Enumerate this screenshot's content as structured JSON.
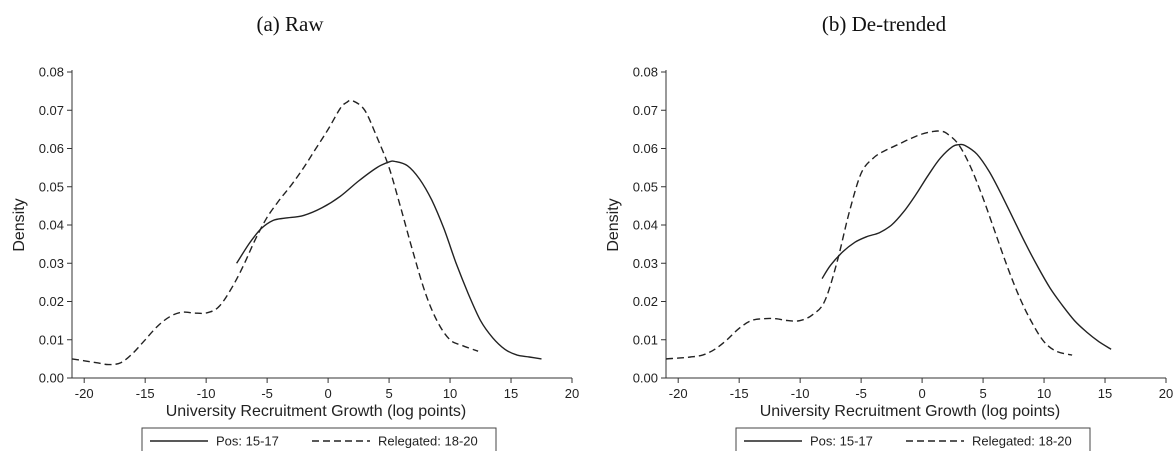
{
  "chart_data": [
    {
      "type": "line",
      "title": "(a) Raw",
      "xlabel": "University Recruitment Growth (log points)",
      "ylabel": "Density",
      "xlim": [
        -21,
        20
      ],
      "ylim": [
        0,
        0.08
      ],
      "xticks": [
        -20,
        -15,
        -10,
        -5,
        0,
        5,
        10,
        15,
        20
      ],
      "yticks": [
        "0.00",
        "0.01",
        "0.02",
        "0.03",
        "0.04",
        "0.05",
        "0.06",
        "0.07",
        "0.08"
      ],
      "grid": false,
      "legend_position": "bottom",
      "series": [
        {
          "name": "Pos: 15-17",
          "style": "solid",
          "x": [
            -7.5,
            -6.5,
            -5.5,
            -4.5,
            -3.5,
            -2,
            -0.5,
            1,
            2.5,
            4,
            5,
            5.5,
            6.5,
            7.5,
            8.5,
            9.5,
            10.5,
            11.5,
            12.5,
            13.5,
            14.5,
            15.5,
            16.5,
            17.5
          ],
          "y": [
            0.03,
            0.035,
            0.039,
            0.0412,
            0.0418,
            0.0425,
            0.0445,
            0.0475,
            0.0515,
            0.055,
            0.0565,
            0.0566,
            0.0555,
            0.052,
            0.0465,
            0.039,
            0.03,
            0.022,
            0.015,
            0.0105,
            0.0075,
            0.006,
            0.0055,
            0.005
          ]
        },
        {
          "name": "Relegated: 18-20",
          "style": "dashed",
          "x": [
            -21,
            -20,
            -19,
            -18,
            -17,
            -16,
            -15,
            -14,
            -13,
            -12,
            -11,
            -10,
            -9,
            -8,
            -7,
            -6,
            -5,
            -4,
            -3,
            -2,
            -1,
            0,
            1,
            1.5,
            2,
            3,
            4,
            5,
            6,
            7,
            8,
            9,
            10,
            11,
            12.3
          ],
          "y": [
            0.005,
            0.0045,
            0.004,
            0.0035,
            0.004,
            0.0065,
            0.01,
            0.0135,
            0.016,
            0.0172,
            0.017,
            0.017,
            0.0185,
            0.023,
            0.029,
            0.036,
            0.042,
            0.0465,
            0.0505,
            0.055,
            0.06,
            0.065,
            0.0705,
            0.072,
            0.0725,
            0.07,
            0.063,
            0.055,
            0.044,
            0.0325,
            0.022,
            0.0145,
            0.01,
            0.0085,
            0.007
          ]
        }
      ]
    },
    {
      "type": "line",
      "title": "(b) De-trended",
      "xlabel": "University Recruitment Growth (log points)",
      "ylabel": "Density",
      "xlim": [
        -21,
        20
      ],
      "ylim": [
        0,
        0.08
      ],
      "xticks": [
        -20,
        -15,
        -10,
        -5,
        0,
        5,
        10,
        15,
        20
      ],
      "yticks": [
        "0.00",
        "0.01",
        "0.02",
        "0.03",
        "0.04",
        "0.05",
        "0.06",
        "0.07",
        "0.08"
      ],
      "grid": false,
      "legend_position": "bottom",
      "series": [
        {
          "name": "Pos: 15-17",
          "style": "solid",
          "x": [
            -8.2,
            -7.5,
            -6.5,
            -5.5,
            -4.5,
            -3.5,
            -2.5,
            -1.5,
            -0.5,
            0.5,
            1.5,
            2.5,
            3,
            3.5,
            4.5,
            5.5,
            6.5,
            7.5,
            8.5,
            9.5,
            10.5,
            11.5,
            12.5,
            13.5,
            14.5,
            15.5
          ],
          "y": [
            0.026,
            0.0295,
            0.033,
            0.0355,
            0.037,
            0.038,
            0.04,
            0.0435,
            0.048,
            0.053,
            0.0575,
            0.0605,
            0.061,
            0.0608,
            0.0585,
            0.054,
            0.048,
            0.0415,
            0.035,
            0.029,
            0.0235,
            0.019,
            0.015,
            0.012,
            0.0095,
            0.0075
          ]
        },
        {
          "name": "Relegated: 18-20",
          "style": "dashed",
          "x": [
            -21,
            -20,
            -19,
            -18,
            -17,
            -16,
            -15,
            -14,
            -13,
            -12,
            -11,
            -10,
            -9,
            -8,
            -7,
            -6,
            -5,
            -4,
            -3,
            -2,
            -1,
            0,
            1,
            1.5,
            2,
            3,
            4,
            5,
            6,
            7,
            8,
            9,
            10,
            11,
            12.3
          ],
          "y": [
            0.005,
            0.0052,
            0.0055,
            0.006,
            0.0075,
            0.01,
            0.013,
            0.015,
            0.0155,
            0.0155,
            0.015,
            0.015,
            0.0165,
            0.02,
            0.03,
            0.043,
            0.0535,
            0.0575,
            0.0595,
            0.061,
            0.0625,
            0.0638,
            0.0645,
            0.0645,
            0.064,
            0.061,
            0.055,
            0.047,
            0.038,
            0.029,
            0.021,
            0.0145,
            0.0095,
            0.007,
            0.006
          ]
        }
      ]
    }
  ]
}
